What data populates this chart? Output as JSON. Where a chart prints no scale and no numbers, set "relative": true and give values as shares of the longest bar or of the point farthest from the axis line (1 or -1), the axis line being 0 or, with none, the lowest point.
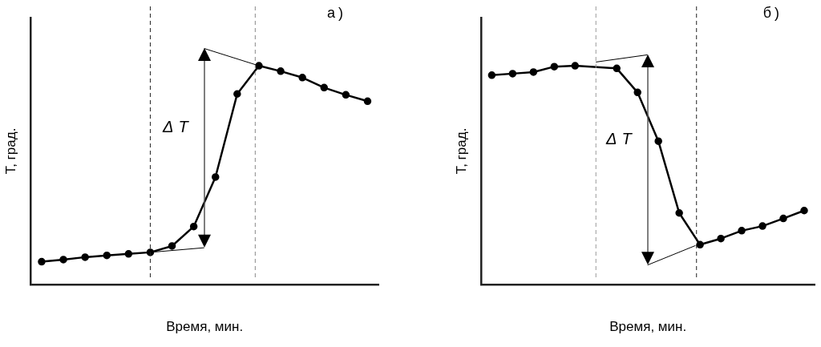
{
  "chart_data": [
    {
      "type": "line",
      "title": "а)",
      "xlabel": "Время, мин.",
      "ylabel": "T, град.",
      "relative": true,
      "marker": "circle",
      "categories": [
        null,
        null,
        null,
        null,
        null,
        null,
        null,
        null,
        null,
        null,
        null,
        null,
        null,
        null,
        null,
        null
      ],
      "series": [
        {
          "color": "#000000",
          "values": [
            0.104,
            0.114,
            0.125,
            0.133,
            0.14,
            0.147,
            0.176,
            0.265,
            0.491,
            0.871,
            1,
            0.975,
            0.946,
            0.9,
            0.867,
            0.838
          ]
        }
      ],
      "annotations": [
        "ΔT"
      ]
    },
    {
      "type": "line",
      "title": "б)",
      "xlabel": "Время, мин.",
      "ylabel": "T, град.",
      "relative": true,
      "marker": "circle",
      "categories": [
        null,
        null,
        null,
        null,
        null,
        null,
        null,
        null,
        null,
        null,
        null,
        null,
        null,
        null,
        null,
        null
      ],
      "series": [
        {
          "color": "#000000",
          "values": [
            0.957,
            0.964,
            0.971,
            0.996,
            1,
            null,
            0.988,
            0.878,
            0.655,
            0.327,
            0.182,
            0.21,
            0.246,
            0.267,
            0.302,
            0.338
          ]
        }
      ],
      "annotations": [
        "ΔT"
      ]
    }
  ]
}
